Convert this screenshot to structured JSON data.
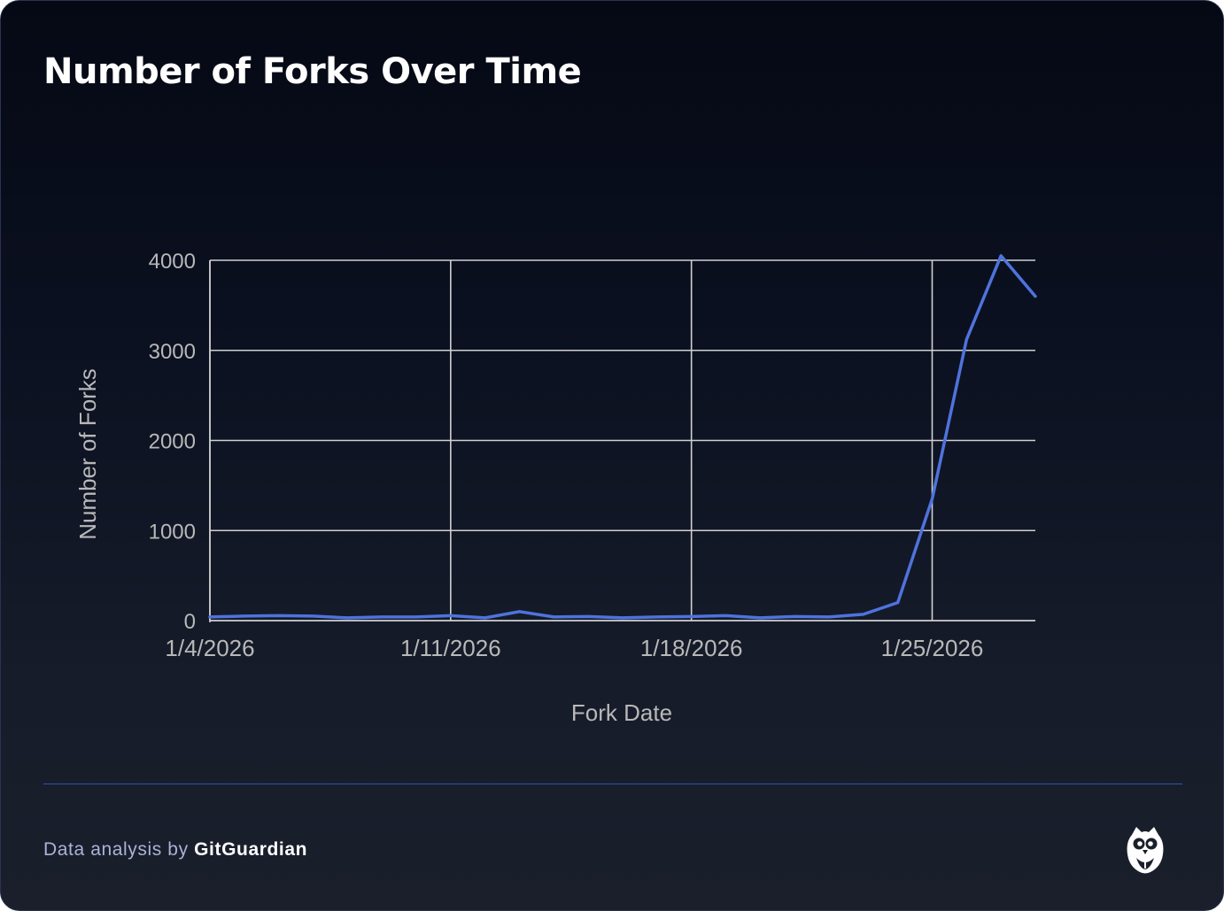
{
  "card": {
    "title": "Number of Forks Over Time"
  },
  "footer": {
    "prefix": "Data analysis by ",
    "brand": "GitGuardian",
    "logo_icon": "gitguardian-owl-icon"
  },
  "colors": {
    "line": "#4f73dd",
    "grid": "#d0d0d0",
    "axis_text": "#b8b8b8",
    "divider": "#3152b5"
  },
  "chart_data": {
    "type": "line",
    "title": "Number of Forks Over Time",
    "xlabel": "Fork Date",
    "ylabel": "Number of Forks",
    "x_ticks": [
      "1/4/2026",
      "1/11/2026",
      "1/18/2026",
      "1/25/2026"
    ],
    "y_ticks": [
      0,
      1000,
      2000,
      3000,
      4000
    ],
    "ylim": [
      0,
      4000
    ],
    "xlim": [
      "2026-01-04",
      "2026-01-28"
    ],
    "grid": true,
    "legend": "none",
    "series": [
      {
        "x": [
          "2026-01-04",
          "2026-01-05",
          "2026-01-06",
          "2026-01-07",
          "2026-01-08",
          "2026-01-09",
          "2026-01-10",
          "2026-01-11",
          "2026-01-12",
          "2026-01-13",
          "2026-01-14",
          "2026-01-15",
          "2026-01-16",
          "2026-01-17",
          "2026-01-18",
          "2026-01-19",
          "2026-01-20",
          "2026-01-21",
          "2026-01-22",
          "2026-01-23",
          "2026-01-24",
          "2026-01-25",
          "2026-01-26",
          "2026-01-27",
          "2026-01-28"
        ],
        "values": [
          40,
          50,
          55,
          50,
          30,
          40,
          40,
          55,
          30,
          100,
          40,
          45,
          30,
          40,
          45,
          55,
          30,
          45,
          40,
          70,
          200,
          1350,
          3120,
          4050,
          3600
        ]
      }
    ]
  }
}
